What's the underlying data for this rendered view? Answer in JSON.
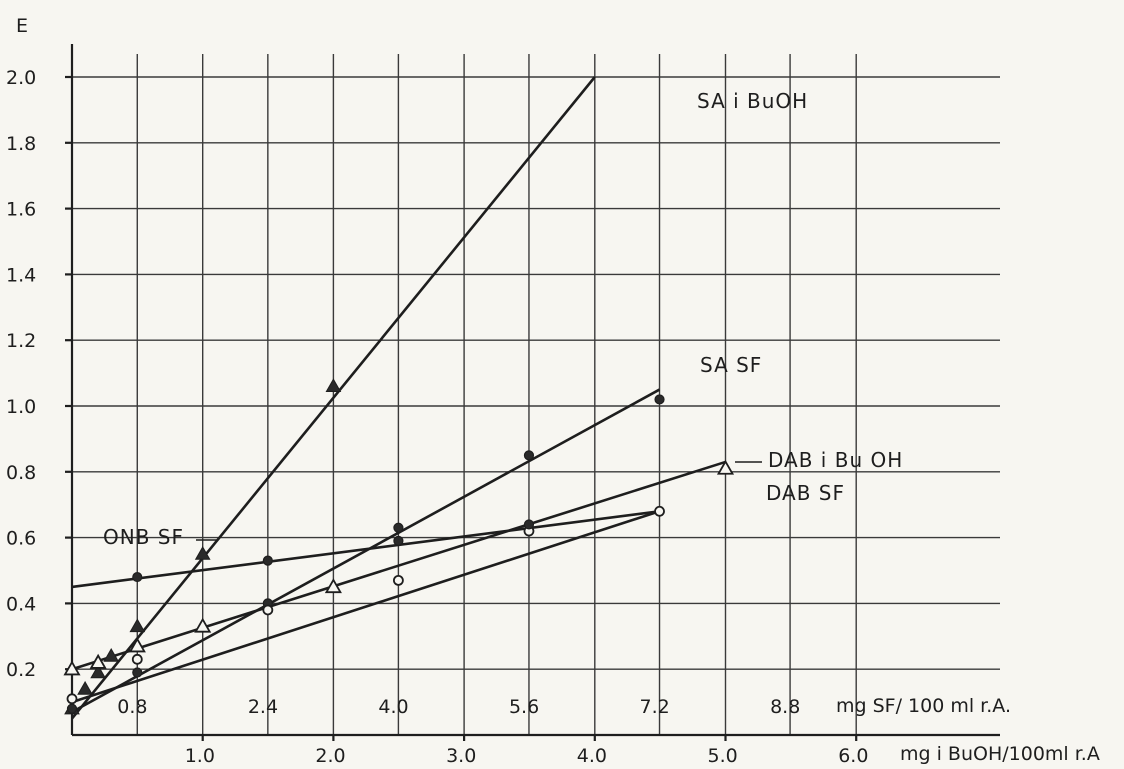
{
  "chart_data": {
    "type": "line",
    "title": "",
    "ylabel": "E",
    "ylim": [
      0,
      2.1
    ],
    "yticks": [
      "0.2",
      "0.4",
      "0.6",
      "0.8",
      "1.0",
      "1.2",
      "1.4",
      "1.6",
      "1.8",
      "2.0"
    ],
    "xlabel_bottom": "mg i BuOH/100ml r.A",
    "xlim_bottom": [
      0,
      6.5
    ],
    "xticks_bottom": [
      "1.0",
      "2.0",
      "3.0",
      "4.0",
      "5.0",
      "6.0"
    ],
    "xlabel_top": "mg SF/ 100 ml r.A.",
    "xlim_top": [
      0,
      10.4
    ],
    "xticks_top": [
      "0.8",
      "2.4",
      "4.0",
      "5.6",
      "7.2",
      "8.8"
    ],
    "grid": true,
    "series": [
      {
        "name": "SA i BuOH",
        "axis": "bottom",
        "marker": "triangle",
        "x": [
          0.0,
          0.1,
          0.2,
          0.3,
          0.5,
          1.0,
          2.0
        ],
        "y": [
          0.08,
          0.14,
          0.19,
          0.24,
          0.33,
          0.55,
          1.06
        ],
        "line": [
          [
            0.0,
            0.05
          ],
          [
            4.0,
            2.0
          ]
        ]
      },
      {
        "name": "SA   SF",
        "axis": "top",
        "marker": "dot",
        "x": [
          0.0,
          0.8,
          2.4,
          4.0,
          5.6,
          7.2
        ],
        "y": [
          0.08,
          0.19,
          0.4,
          0.63,
          0.85,
          1.02
        ],
        "line": [
          [
            0.0,
            0.07
          ],
          [
            7.2,
            1.05
          ]
        ]
      },
      {
        "name": "DAB i Bu OH",
        "axis": "bottom",
        "marker": "triangle-open",
        "x": [
          0.0,
          0.2,
          0.5,
          1.0,
          2.0,
          5.0
        ],
        "y": [
          0.2,
          0.22,
          0.27,
          0.33,
          0.45,
          0.81
        ],
        "line": [
          [
            0.0,
            0.2
          ],
          [
            5.0,
            0.83
          ]
        ]
      },
      {
        "name": "DAB  SF",
        "axis": "top",
        "marker": "dot-open",
        "x": [
          0.0,
          0.8,
          2.4,
          4.0,
          5.6,
          7.2
        ],
        "y": [
          0.11,
          0.23,
          0.38,
          0.47,
          0.62,
          0.68
        ],
        "line": [
          [
            0.0,
            0.1
          ],
          [
            7.2,
            0.68
          ]
        ]
      },
      {
        "name": "ONB  SF",
        "axis": "top",
        "marker": "dot",
        "x": [
          0.8,
          2.4,
          4.0,
          5.6
        ],
        "y": [
          0.48,
          0.53,
          0.59,
          0.64
        ],
        "line": [
          [
            0.0,
            0.45
          ],
          [
            7.2,
            0.68
          ]
        ]
      }
    ]
  }
}
